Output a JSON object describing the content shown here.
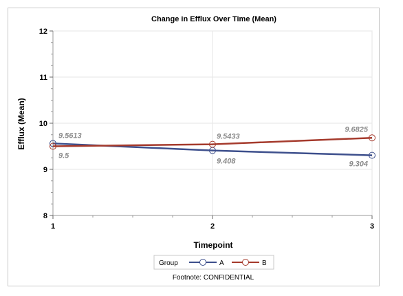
{
  "chart_data": {
    "type": "line",
    "title": "Change in Efflux Over Time (Mean)",
    "xlabel": "Timepoint",
    "ylabel": "Efflux (Mean)",
    "x": [
      1,
      2,
      3
    ],
    "x_tick_labels": [
      "1",
      "2",
      "3"
    ],
    "y_tick_labels": [
      "8",
      "9",
      "10",
      "11",
      "12"
    ],
    "ylim": [
      8,
      12
    ],
    "xlim": [
      1,
      3
    ],
    "grid": true,
    "legend": {
      "title": "Group",
      "placement": "bottom"
    },
    "series": [
      {
        "name": "A",
        "values": [
          9.5613,
          9.408,
          9.304
        ],
        "labels": [
          "9.5613",
          "9.408",
          "9.304"
        ],
        "color": "#3d4f8c"
      },
      {
        "name": "B",
        "values": [
          9.5,
          9.5433,
          9.6825
        ],
        "labels": [
          "9.5",
          "9.5433",
          "9.6825"
        ],
        "color": "#a53a2c"
      }
    ],
    "footnote": "Footnote: CONFIDENTIAL"
  }
}
